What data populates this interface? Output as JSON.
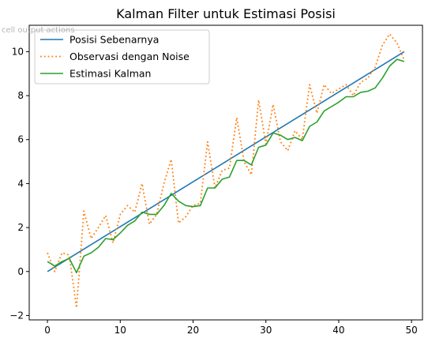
{
  "overlay": {
    "label": "cell output actions"
  },
  "chart_data": {
    "type": "line",
    "title": "Kalman Filter untuk Estimasi Posisi",
    "xlabel": "",
    "ylabel": "",
    "xlim": [
      -2.5,
      51.5
    ],
    "ylim": [
      -2.2,
      11.2
    ],
    "xticks": [
      0,
      10,
      20,
      30,
      40,
      50
    ],
    "yticks": [
      -2,
      0,
      2,
      4,
      6,
      8,
      10
    ],
    "grid": false,
    "legend_position": "top-left",
    "series": [
      {
        "name": "Posisi Sebenarnya",
        "color": "#1f77b4",
        "style": "solid",
        "x": [
          0,
          49
        ],
        "y": [
          0,
          10
        ]
      },
      {
        "name": "Observasi dengan Noise",
        "color": "#ff7f0e",
        "style": "dotted",
        "x": [
          0,
          1,
          2,
          3,
          4,
          5,
          6,
          7,
          8,
          9,
          10,
          11,
          12,
          13,
          14,
          15,
          16,
          17,
          18,
          19,
          20,
          21,
          22,
          23,
          24,
          25,
          26,
          27,
          28,
          29,
          30,
          31,
          32,
          33,
          34,
          35,
          36,
          37,
          38,
          39,
          40,
          41,
          42,
          43,
          44,
          45,
          46,
          47,
          48,
          49
        ],
        "y": [
          0.85,
          0.0,
          0.85,
          0.75,
          -1.65,
          2.75,
          1.5,
          2.0,
          2.55,
          1.3,
          2.6,
          3.0,
          2.7,
          4.0,
          2.15,
          2.6,
          4.0,
          5.1,
          2.2,
          2.5,
          3.0,
          3.1,
          5.9,
          3.8,
          4.6,
          4.7,
          7.0,
          5.0,
          4.4,
          7.8,
          5.8,
          7.6,
          5.9,
          5.5,
          6.4,
          6.0,
          8.5,
          7.2,
          8.5,
          8.1,
          8.3,
          8.5,
          8.0,
          8.6,
          8.8,
          9.3,
          10.3,
          10.8,
          10.4,
          9.6
        ]
      },
      {
        "name": "Estimasi Kalman",
        "color": "#2ca02c",
        "style": "solid",
        "x": [
          0,
          1,
          2,
          3,
          4,
          5,
          6,
          7,
          8,
          9,
          10,
          11,
          12,
          13,
          14,
          15,
          16,
          17,
          18,
          19,
          20,
          21,
          22,
          23,
          24,
          25,
          26,
          27,
          28,
          29,
          30,
          31,
          32,
          33,
          34,
          35,
          36,
          37,
          38,
          39,
          40,
          41,
          42,
          43,
          44,
          45,
          46,
          47,
          48,
          49
        ],
        "y": [
          0.45,
          0.25,
          0.45,
          0.6,
          -0.05,
          0.7,
          0.85,
          1.1,
          1.5,
          1.45,
          1.75,
          2.1,
          2.3,
          2.7,
          2.6,
          2.6,
          3.0,
          3.55,
          3.2,
          3.0,
          2.95,
          3.0,
          3.8,
          3.8,
          4.2,
          4.3,
          5.05,
          5.05,
          4.85,
          5.65,
          5.75,
          6.3,
          6.2,
          6.0,
          6.1,
          5.95,
          6.6,
          6.8,
          7.3,
          7.5,
          7.7,
          7.95,
          7.95,
          8.15,
          8.2,
          8.35,
          8.8,
          9.35,
          9.65,
          9.55
        ]
      }
    ]
  }
}
